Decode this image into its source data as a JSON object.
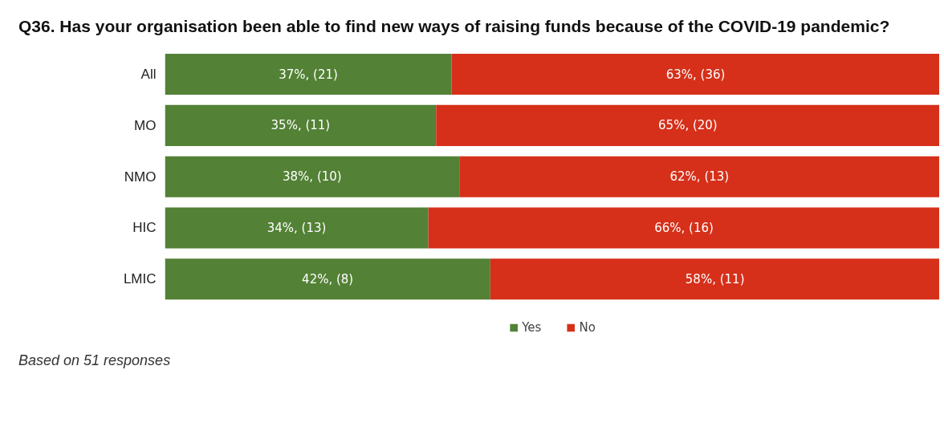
{
  "chart_data": {
    "type": "bar",
    "orientation": "horizontal",
    "stacked": true,
    "title": "Q36. Has your organisation been able to find new ways of raising funds because of the COVID-19 pandemic?",
    "categories": [
      "All",
      "MO",
      "NMO",
      "HIC",
      "LMIC"
    ],
    "series": [
      {
        "name": "Yes",
        "color": "#538135",
        "values": [
          37,
          35,
          38,
          34,
          42
        ],
        "value_labels": [
          "37%, (21)",
          "35%, (11)",
          "38%, (10)",
          "34%, (13)",
          "42%, (8)"
        ]
      },
      {
        "name": "No",
        "color": "#d6301a",
        "values": [
          63,
          65,
          62,
          66,
          58
        ],
        "value_labels": [
          "63%, (36)",
          "65%, (20)",
          "62%, (13)",
          "66%, (16)",
          "58%, (11)"
        ]
      }
    ],
    "xlim": [
      0,
      100
    ],
    "tick_labels": "y",
    "grid": false,
    "legend": "bottom",
    "annotations": [
      "Based on 51 responses"
    ]
  }
}
